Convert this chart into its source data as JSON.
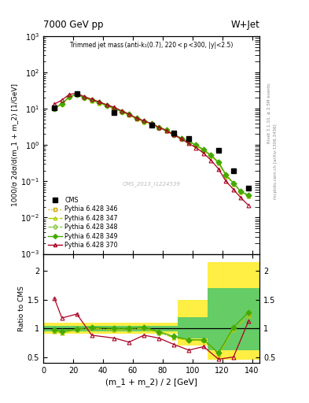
{
  "title_left": "7000 GeV pp",
  "title_right": "W+Jet",
  "xlabel": "(m_1 + m_2) / 2 [GeV]",
  "ylabel_main": "1000/σ 2dσ/d(m_1 + m_2) [1/GeV]",
  "ylabel_ratio": "Ratio to CMS",
  "watermark": "CMS_2013_I1224539",
  "right_label1": "Rivet 3.1.10, ≥ 2.5M events",
  "right_label2": "mcplots.cern.ch [arXiv:1306.3436]",
  "cms_x": [
    7.5,
    22.5,
    47.5,
    72.5,
    87.5,
    97.5,
    117.5,
    127.5,
    137.5
  ],
  "cms_vals": [
    10.5,
    26.0,
    8.0,
    3.5,
    2.2,
    1.5,
    0.7,
    0.2,
    0.065
  ],
  "py346_x": [
    7.5,
    12.5,
    17.5,
    22.5,
    27.5,
    32.5,
    37.5,
    42.5,
    47.5,
    52.5,
    57.5,
    62.5,
    67.5,
    72.5,
    77.5,
    82.5,
    87.5,
    92.5,
    97.5,
    102.5,
    107.5,
    112.5,
    117.5,
    122.5,
    127.5,
    132.5,
    137.5
  ],
  "py346_y": [
    10.0,
    13.5,
    21.0,
    24.5,
    20.0,
    17.0,
    14.5,
    12.2,
    10.0,
    8.2,
    6.8,
    5.3,
    4.4,
    3.8,
    3.0,
    2.5,
    1.9,
    1.5,
    1.2,
    0.95,
    0.72,
    0.5,
    0.32,
    0.14,
    0.085,
    0.05,
    0.04
  ],
  "py347_x": [
    7.5,
    12.5,
    17.5,
    22.5,
    27.5,
    32.5,
    37.5,
    42.5,
    47.5,
    52.5,
    57.5,
    62.5,
    67.5,
    72.5,
    77.5,
    82.5,
    87.5,
    92.5,
    97.5,
    102.5,
    107.5,
    112.5,
    117.5,
    122.5,
    127.5,
    132.5,
    137.5
  ],
  "py347_y": [
    10.0,
    13.5,
    21.0,
    24.5,
    20.0,
    17.0,
    14.5,
    12.2,
    10.0,
    8.2,
    6.8,
    5.3,
    4.4,
    3.8,
    3.0,
    2.5,
    1.9,
    1.5,
    1.2,
    0.95,
    0.72,
    0.5,
    0.32,
    0.14,
    0.085,
    0.05,
    0.04
  ],
  "py348_x": [
    7.5,
    12.5,
    17.5,
    22.5,
    27.5,
    32.5,
    37.5,
    42.5,
    47.5,
    52.5,
    57.5,
    62.5,
    67.5,
    72.5,
    77.5,
    82.5,
    87.5,
    92.5,
    97.5,
    102.5,
    107.5,
    112.5,
    117.5,
    122.5,
    127.5,
    132.5,
    137.5
  ],
  "py348_y": [
    10.2,
    14.0,
    21.5,
    25.0,
    20.5,
    17.5,
    15.0,
    12.5,
    10.3,
    8.4,
    7.0,
    5.5,
    4.6,
    3.9,
    3.1,
    2.6,
    1.95,
    1.55,
    1.25,
    1.0,
    0.75,
    0.52,
    0.34,
    0.15,
    0.09,
    0.052,
    0.042
  ],
  "py349_x": [
    7.5,
    12.5,
    17.5,
    22.5,
    27.5,
    32.5,
    37.5,
    42.5,
    47.5,
    52.5,
    57.5,
    62.5,
    67.5,
    72.5,
    77.5,
    82.5,
    87.5,
    92.5,
    97.5,
    102.5,
    107.5,
    112.5,
    117.5,
    122.5,
    127.5,
    132.5,
    137.5
  ],
  "py349_y": [
    10.2,
    14.0,
    21.5,
    25.0,
    20.5,
    17.5,
    15.0,
    12.5,
    10.3,
    8.4,
    7.0,
    5.5,
    4.6,
    3.9,
    3.1,
    2.6,
    1.95,
    1.55,
    1.25,
    1.0,
    0.75,
    0.52,
    0.34,
    0.15,
    0.09,
    0.052,
    0.042
  ],
  "py370_x": [
    7.5,
    12.5,
    17.5,
    22.5,
    27.5,
    32.5,
    37.5,
    42.5,
    47.5,
    52.5,
    57.5,
    62.5,
    67.5,
    72.5,
    77.5,
    82.5,
    87.5,
    92.5,
    97.5,
    102.5,
    107.5,
    112.5,
    117.5,
    122.5,
    127.5,
    132.5,
    137.5
  ],
  "py370_y": [
    13.5,
    17.5,
    25.0,
    27.0,
    21.5,
    18.5,
    15.5,
    13.0,
    11.0,
    8.8,
    7.2,
    5.5,
    4.7,
    3.9,
    3.1,
    2.5,
    1.9,
    1.5,
    1.1,
    0.85,
    0.6,
    0.38,
    0.22,
    0.1,
    0.06,
    0.035,
    0.022
  ],
  "ratio346_x": [
    7.5,
    12.5,
    22.5,
    32.5,
    47.5,
    57.5,
    67.5,
    77.5,
    87.5,
    97.5,
    107.5,
    117.5,
    127.5,
    137.5
  ],
  "ratio346_y": [
    0.95,
    0.92,
    0.97,
    1.0,
    0.97,
    0.98,
    1.0,
    0.92,
    0.84,
    0.79,
    0.79,
    0.55,
    0.97,
    1.22
  ],
  "ratio347_x": [
    7.5,
    12.5,
    22.5,
    32.5,
    47.5,
    57.5,
    67.5,
    77.5,
    87.5,
    97.5,
    107.5,
    117.5,
    127.5,
    137.5
  ],
  "ratio347_y": [
    0.95,
    0.92,
    0.97,
    1.0,
    0.97,
    0.98,
    1.0,
    0.92,
    0.84,
    0.79,
    0.79,
    0.55,
    0.97,
    1.22
  ],
  "ratio348_x": [
    7.5,
    12.5,
    22.5,
    32.5,
    47.5,
    57.5,
    67.5,
    77.5,
    87.5,
    97.5,
    107.5,
    117.5,
    127.5,
    137.5
  ],
  "ratio348_y": [
    0.97,
    0.95,
    0.99,
    1.02,
    1.0,
    1.0,
    1.02,
    0.94,
    0.86,
    0.8,
    0.8,
    0.57,
    1.02,
    1.28
  ],
  "ratio349_x": [
    7.5,
    12.5,
    22.5,
    32.5,
    47.5,
    57.5,
    67.5,
    77.5,
    87.5,
    97.5,
    107.5,
    117.5,
    127.5,
    137.5
  ],
  "ratio349_y": [
    0.97,
    0.95,
    0.99,
    1.02,
    1.0,
    1.0,
    1.02,
    0.94,
    0.86,
    0.8,
    0.8,
    0.57,
    1.02,
    1.28
  ],
  "ratio370_x": [
    7.5,
    12.5,
    22.5,
    32.5,
    47.5,
    57.5,
    67.5,
    77.5,
    87.5,
    97.5,
    107.5,
    117.5,
    127.5,
    137.5
  ],
  "ratio370_y": [
    1.52,
    1.18,
    1.25,
    0.88,
    0.83,
    0.76,
    0.88,
    0.83,
    0.72,
    0.62,
    0.68,
    0.46,
    0.5,
    1.12
  ],
  "color_cms": "#000000",
  "color_346": "#ccaa00",
  "color_347": "#aacc00",
  "color_348": "#88cc44",
  "color_349": "#44aa00",
  "color_370": "#aa0022",
  "color_yellow": "#ffee44",
  "color_green": "#66cc66",
  "xlim": [
    0,
    145
  ],
  "ylim_main": [
    0.001,
    1000.0
  ],
  "ylim_ratio": [
    0.4,
    2.3
  ],
  "ratio_yticks": [
    0.5,
    1.0,
    1.5,
    2.0
  ],
  "ratio_yticklabels": [
    "0.5",
    "1",
    "1.5",
    "2"
  ]
}
